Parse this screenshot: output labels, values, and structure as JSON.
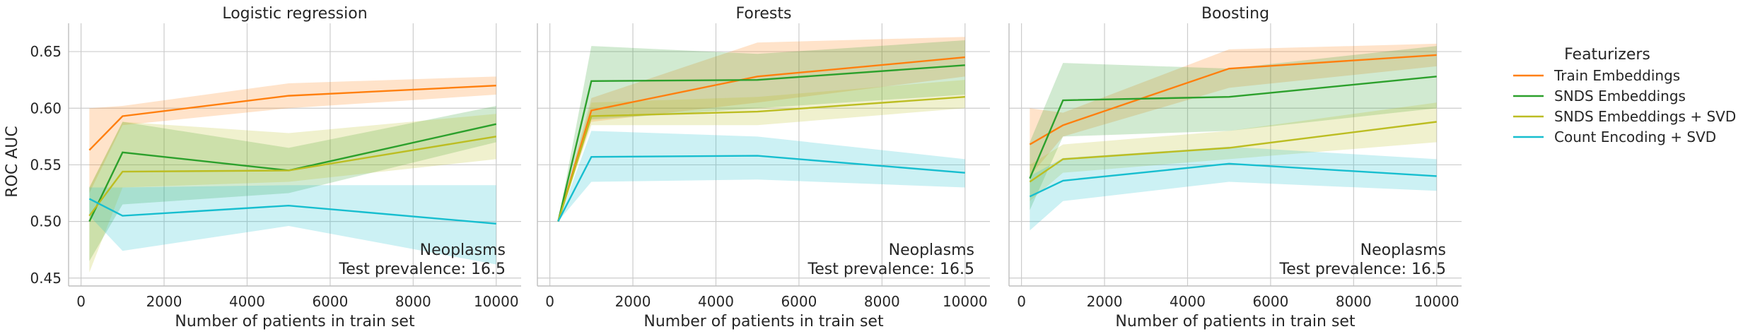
{
  "chart_data": {
    "type": "line",
    "ylabel": "ROC AUC",
    "xlabel": "Number of patients in train set",
    "ylim": [
      0.443,
      0.675
    ],
    "xlim": [
      -300,
      10600
    ],
    "x_ticks": [
      0,
      2000,
      4000,
      6000,
      8000,
      10000
    ],
    "y_ticks": [
      0.45,
      0.5,
      0.55,
      0.6,
      0.65
    ],
    "grid": true,
    "legend": {
      "title": "Featurizers",
      "placement": "right",
      "entries": [
        "Train Embeddings",
        "SNDS Embeddings",
        "SNDS Embeddings + SVD",
        "Count Encoding + SVD"
      ]
    },
    "colors": {
      "Train Embeddings": "#ff7f0e",
      "SNDS Embeddings": "#2ca02c",
      "SNDS Embeddings + SVD": "#bcbd22",
      "Count Encoding + SVD": "#17becf"
    },
    "panels": [
      {
        "title": "Logistic regression",
        "annotation": [
          "Neoplasms",
          "Test prevalence: 16.5"
        ],
        "series": [
          {
            "name": "Train Embeddings",
            "x": [
              200,
              1000,
              5000,
              10000
            ],
            "values": [
              0.563,
              0.593,
              0.611,
              0.62
            ],
            "lower": [
              0.525,
              0.585,
              0.6,
              0.612
            ],
            "upper": [
              0.6,
              0.602,
              0.622,
              0.628
            ]
          },
          {
            "name": "SNDS Embeddings",
            "x": [
              200,
              1000,
              5000,
              10000
            ],
            "values": [
              0.5,
              0.561,
              0.545,
              0.586
            ],
            "lower": [
              0.465,
              0.515,
              0.525,
              0.57
            ],
            "upper": [
              0.53,
              0.588,
              0.565,
              0.602
            ]
          },
          {
            "name": "SNDS Embeddings + SVD",
            "x": [
              200,
              1000,
              5000,
              10000
            ],
            "values": [
              0.505,
              0.544,
              0.545,
              0.575
            ],
            "lower": [
              0.455,
              0.53,
              0.535,
              0.555
            ],
            "upper": [
              0.53,
              0.588,
              0.578,
              0.595
            ]
          },
          {
            "name": "Count Encoding + SVD",
            "x": [
              200,
              1000,
              5000,
              10000
            ],
            "values": [
              0.52,
              0.505,
              0.514,
              0.498
            ],
            "lower": [
              0.505,
              0.474,
              0.496,
              0.462
            ],
            "upper": [
              0.53,
              0.53,
              0.532,
              0.532
            ]
          }
        ]
      },
      {
        "title": "Forests",
        "annotation": [
          "Neoplasms",
          "Test prevalence: 16.5"
        ],
        "series": [
          {
            "name": "Train Embeddings",
            "x": [
              200,
              1000,
              5000,
              10000
            ],
            "values": [
              0.5,
              0.598,
              0.628,
              0.645
            ],
            "lower": [
              0.5,
              0.588,
              0.605,
              0.628
            ],
            "upper": [
              0.5,
              0.609,
              0.658,
              0.663
            ]
          },
          {
            "name": "SNDS Embeddings",
            "x": [
              200,
              1000,
              5000,
              10000
            ],
            "values": [
              0.5,
              0.624,
              0.625,
              0.638
            ],
            "lower": [
              0.5,
              0.59,
              0.6,
              0.612
            ],
            "upper": [
              0.5,
              0.655,
              0.648,
              0.66
            ]
          },
          {
            "name": "SNDS Embeddings + SVD",
            "x": [
              200,
              1000,
              5000,
              10000
            ],
            "values": [
              0.5,
              0.593,
              0.597,
              0.61
            ],
            "lower": [
              0.5,
              0.585,
              0.585,
              0.6
            ],
            "upper": [
              0.5,
              0.605,
              0.61,
              0.625
            ]
          },
          {
            "name": "Count Encoding + SVD",
            "x": [
              200,
              1000,
              5000,
              10000
            ],
            "values": [
              0.5,
              0.557,
              0.558,
              0.543
            ],
            "lower": [
              0.5,
              0.535,
              0.537,
              0.53
            ],
            "upper": [
              0.5,
              0.58,
              0.575,
              0.555
            ]
          }
        ]
      },
      {
        "title": "Boosting",
        "annotation": [
          "Neoplasms",
          "Test prevalence: 16.5"
        ],
        "series": [
          {
            "name": "Train Embeddings",
            "x": [
              200,
              1000,
              5000,
              10000
            ],
            "values": [
              0.568,
              0.585,
              0.635,
              0.647
            ],
            "lower": [
              0.54,
              0.575,
              0.618,
              0.637
            ],
            "upper": [
              0.6,
              0.596,
              0.652,
              0.657
            ]
          },
          {
            "name": "SNDS Embeddings",
            "x": [
              200,
              1000,
              5000,
              10000
            ],
            "values": [
              0.538,
              0.607,
              0.61,
              0.628
            ],
            "lower": [
              0.51,
              0.575,
              0.58,
              0.6
            ],
            "upper": [
              0.57,
              0.64,
              0.635,
              0.655
            ]
          },
          {
            "name": "SNDS Embeddings + SVD",
            "x": [
              200,
              1000,
              5000,
              10000
            ],
            "values": [
              0.535,
              0.555,
              0.565,
              0.588
            ],
            "lower": [
              0.518,
              0.543,
              0.555,
              0.57
            ],
            "upper": [
              0.55,
              0.568,
              0.58,
              0.605
            ]
          },
          {
            "name": "Count Encoding + SVD",
            "x": [
              200,
              1000,
              5000,
              10000
            ],
            "values": [
              0.522,
              0.536,
              0.551,
              0.54
            ],
            "lower": [
              0.492,
              0.518,
              0.535,
              0.527
            ],
            "upper": [
              0.54,
              0.556,
              0.566,
              0.555
            ]
          }
        ]
      }
    ]
  }
}
